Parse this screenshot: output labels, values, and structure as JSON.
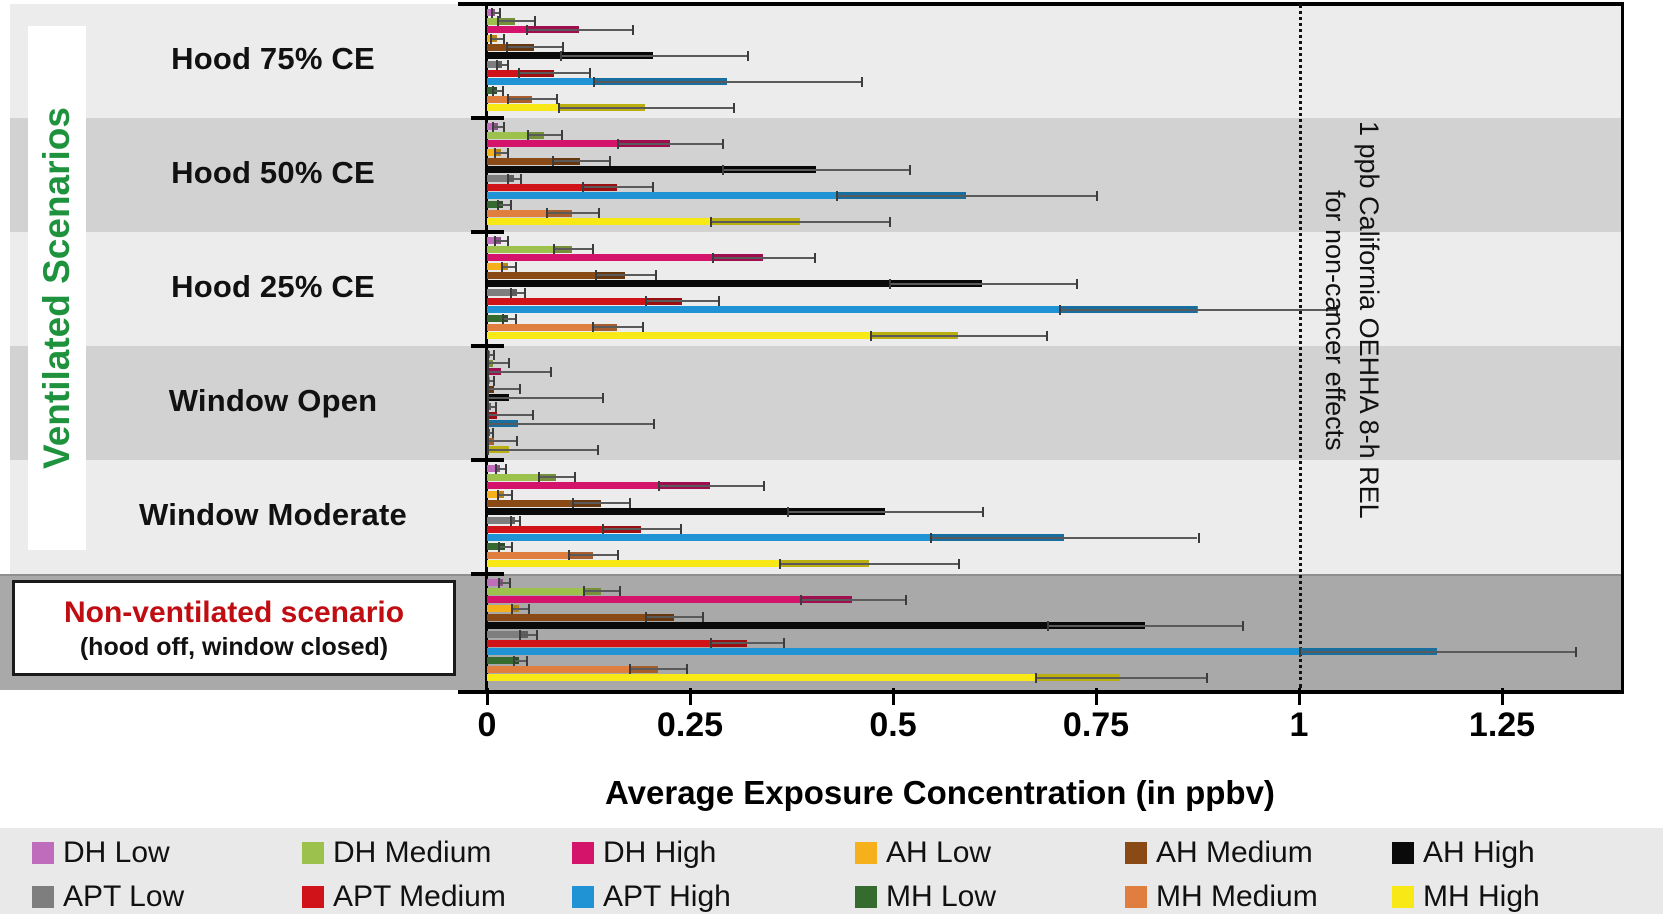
{
  "colors": {
    "band_light": "#ececec",
    "band_dark": "#d2d2d2",
    "band_nonvent": "#a9a9a9",
    "legend_bg": "#e9e9e9",
    "ylabel_green": "#1f923d",
    "nonvent_red": "#c00d12",
    "axis_black": "#000000"
  },
  "chart_data": {
    "type": "bar",
    "orientation": "horizontal",
    "xlabel": "Average Exposure Concentration (in ppbv)",
    "ylabel": "Ventilated Scenarios",
    "xlim": [
      0,
      1.4
    ],
    "xtick_values": [
      0,
      0.25,
      0.5,
      0.75,
      1,
      1.25
    ],
    "xtick_labels": [
      "0",
      "0.25",
      "0.5",
      "0.75",
      "1",
      "1.25"
    ],
    "grid": false,
    "legend_position": "bottom",
    "reference_line": {
      "value": 1,
      "label_lines": [
        "1 ppb California OEHHA 8-h REL",
        "for non-cancer effects"
      ]
    },
    "categories": [
      {
        "label": "Hood 75% CE"
      },
      {
        "label": "Hood 50% CE"
      },
      {
        "label": "Hood 25% CE"
      },
      {
        "label": "Window Open"
      },
      {
        "label": "Window Moderate"
      },
      {
        "label": "Non-ventilated scenario",
        "sublabel": "(hood off, window closed)"
      }
    ],
    "series": [
      {
        "name": "DH Low",
        "color": "#bf6cbd",
        "values": [
          0.01,
          0.013,
          0.017,
          0.004,
          0.016,
          0.02
        ],
        "errors": [
          0.005,
          0.007,
          0.008,
          0.004,
          0.006,
          0.007
        ]
      },
      {
        "name": "DH Medium",
        "color": "#9cc14d",
        "values": [
          0.035,
          0.07,
          0.105,
          0.008,
          0.085,
          0.14
        ],
        "errors": [
          0.023,
          0.021,
          0.024,
          0.018,
          0.022,
          0.022
        ]
      },
      {
        "name": "DH High",
        "color": "#d4146a",
        "values": [
          0.113,
          0.225,
          0.34,
          0.017,
          0.275,
          0.45
        ],
        "errors": [
          0.065,
          0.065,
          0.063,
          0.061,
          0.065,
          0.065
        ]
      },
      {
        "name": "AH Low",
        "color": "#f5b01c",
        "values": [
          0.012,
          0.017,
          0.026,
          0.004,
          0.021,
          0.04
        ],
        "errors": [
          0.008,
          0.008,
          0.009,
          0.004,
          0.009,
          0.01
        ]
      },
      {
        "name": "AH Medium",
        "color": "#8a4a16",
        "values": [
          0.058,
          0.115,
          0.17,
          0.009,
          0.14,
          0.23
        ],
        "errors": [
          0.034,
          0.035,
          0.037,
          0.031,
          0.035,
          0.035
        ]
      },
      {
        "name": "AH High",
        "color": "#0a0a0a",
        "values": [
          0.205,
          0.405,
          0.61,
          0.027,
          0.49,
          0.81
        ],
        "errors": [
          0.115,
          0.115,
          0.115,
          0.115,
          0.12,
          0.12
        ]
      },
      {
        "name": "APT Low",
        "color": "#7e7e7e",
        "values": [
          0.018,
          0.033,
          0.037,
          0.005,
          0.034,
          0.05
        ],
        "errors": [
          0.007,
          0.008,
          0.009,
          0.005,
          0.006,
          0.01
        ]
      },
      {
        "name": "APT Medium",
        "color": "#cf1318",
        "values": [
          0.082,
          0.16,
          0.24,
          0.012,
          0.19,
          0.32
        ],
        "errors": [
          0.044,
          0.043,
          0.045,
          0.044,
          0.048,
          0.045
        ]
      },
      {
        "name": "APT High",
        "color": "#2093d5",
        "values": [
          0.295,
          0.59,
          0.875,
          0.038,
          0.71,
          1.17
        ],
        "errors": [
          0.165,
          0.16,
          0.17,
          0.167,
          0.165,
          0.17
        ]
      },
      {
        "name": "MH Low",
        "color": "#356b2f",
        "values": [
          0.012,
          0.02,
          0.026,
          0.003,
          0.022,
          0.04
        ],
        "errors": [
          0.006,
          0.008,
          0.008,
          0.003,
          0.008,
          0.008
        ]
      },
      {
        "name": "MH Medium",
        "color": "#df7e3e",
        "values": [
          0.055,
          0.105,
          0.16,
          0.009,
          0.13,
          0.21
        ],
        "errors": [
          0.03,
          0.032,
          0.031,
          0.027,
          0.03,
          0.035
        ]
      },
      {
        "name": "MH High",
        "color": "#f8e816",
        "values": [
          0.195,
          0.385,
          0.58,
          0.027,
          0.47,
          0.78
        ],
        "errors": [
          0.108,
          0.11,
          0.108,
          0.108,
          0.11,
          0.105
        ]
      }
    ]
  }
}
